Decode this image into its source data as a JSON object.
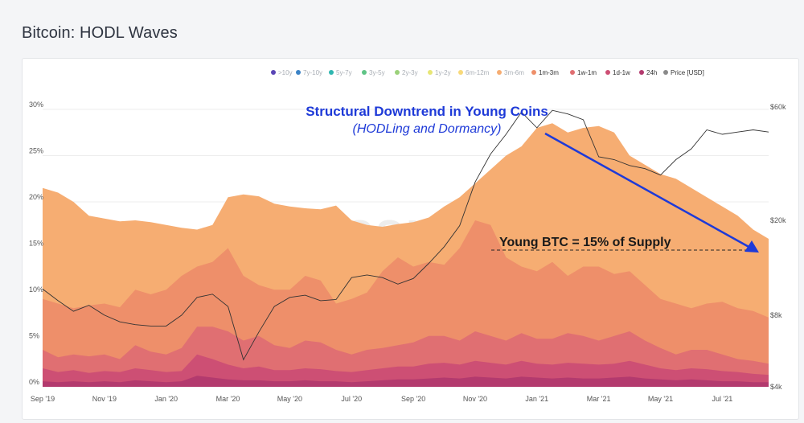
{
  "page": {
    "title": "Bitcoin: HODL Waves"
  },
  "watermark": "glassnode",
  "colors": {
    "band_3m6m": "#f6ad72",
    "band_1m3m": "#ee8f6a",
    "band_1w1m": "#e06f72",
    "band_1d1w": "#cd4f74",
    "band_24h": "#b33a6e",
    "price": "#333333",
    "annotation_blue": "#1e3ad8"
  },
  "legend": [
    {
      "label": ">10y",
      "color": "#5a45b5",
      "active": false
    },
    {
      "label": "7y-10y",
      "color": "#3b83c6",
      "active": false
    },
    {
      "label": "5y-7y",
      "color": "#2fb6b0",
      "active": false
    },
    {
      "label": "3y-5y",
      "color": "#5fc486",
      "active": false
    },
    {
      "label": "2y-3y",
      "color": "#9bd17a",
      "active": false
    },
    {
      "label": "1y-2y",
      "color": "#e7e676",
      "active": false
    },
    {
      "label": "6m-12m",
      "color": "#f8d97a",
      "active": false
    },
    {
      "label": "3m-6m",
      "color": "#f6ad72",
      "active": false
    },
    {
      "label": "1m-3m",
      "color": "#ee8f6a",
      "active": true
    },
    {
      "label": "1w-1m",
      "color": "#e06f72",
      "active": true
    },
    {
      "label": "1d-1w",
      "color": "#cd4f74",
      "active": true
    },
    {
      "label": "24h",
      "color": "#b33a6e",
      "active": true
    },
    {
      "label": "Price [USD]",
      "color": "#8a8a8a",
      "active": true
    }
  ],
  "annotations": {
    "headline": "Structural Downtrend in Young Coins",
    "subline": "(HODLing and Dormancy)",
    "level_label": "Young BTC = 15% of Supply"
  },
  "chart_data": {
    "type": "area",
    "stacked": true,
    "x_ticks": [
      "Sep '19",
      "Nov '19",
      "Jan '20",
      "Mar '20",
      "May '20",
      "Jul '20",
      "Sep '20",
      "Nov '20",
      "Jan '21",
      "Mar '21",
      "May '21",
      "Jul '21"
    ],
    "y_ticks": [
      "0%",
      "5%",
      "10%",
      "15%",
      "20%",
      "25%",
      "30%"
    ],
    "y2_ticks": [
      "$4k",
      "$8k",
      "$20k",
      "$60k"
    ],
    "ylim": [
      0,
      32
    ],
    "y2_scale": "log",
    "y2lim": [
      4000,
      70000
    ],
    "x_months": [
      0,
      0.5,
      1,
      1.5,
      2,
      2.5,
      3,
      3.5,
      4,
      4.5,
      5,
      5.5,
      6,
      6.5,
      7,
      7.5,
      8,
      8.5,
      9,
      9.5,
      10,
      10.5,
      11,
      11.5,
      12,
      12.5,
      13,
      13.5,
      14,
      14.5,
      15,
      15.5,
      16,
      16.5,
      17,
      17.5,
      18,
      18.5,
      19,
      19.5,
      20,
      20.5,
      21,
      21.5,
      22,
      22.5,
      23,
      23.5
    ],
    "series": [
      {
        "name": "3m-6m",
        "values": [
          21.5,
          21,
          20,
          18.5,
          18.2,
          17.9,
          18,
          17.8,
          17.5,
          17.2,
          17,
          17.5,
          20.5,
          20.8,
          20.6,
          19.8,
          19.5,
          19.3,
          19.2,
          19.6,
          18,
          17.5,
          17.3,
          17.6,
          17.8,
          18.3,
          19.5,
          20.5,
          22,
          23.5,
          25,
          26,
          28,
          28.5,
          27.5,
          28,
          28.2,
          27.5,
          25,
          24,
          23,
          22.5,
          21.5,
          20.5,
          19.5,
          18.5,
          17,
          16
        ]
      },
      {
        "name": "1m-3m",
        "values": [
          9.5,
          9,
          8.5,
          8.8,
          9,
          8.6,
          10.5,
          10,
          10.5,
          12,
          13,
          13.5,
          15,
          12,
          11,
          10.5,
          10.5,
          12,
          11.5,
          9,
          9.5,
          10.2,
          12.5,
          14,
          13,
          13.5,
          13.2,
          15,
          18,
          17.5,
          14,
          13,
          12.5,
          13.5,
          12,
          13,
          13,
          12.2,
          12.5,
          11,
          9.5,
          9,
          8.5,
          9,
          9.2,
          8.5,
          8.2,
          7.5
        ]
      },
      {
        "name": "1w-1m",
        "values": [
          4,
          3.2,
          3.5,
          3.3,
          3.5,
          3,
          4.5,
          3.8,
          3.5,
          4.2,
          6.5,
          6.5,
          6,
          5,
          5.5,
          4.5,
          4.2,
          5,
          4.8,
          4,
          3.5,
          4,
          4.2,
          4.5,
          4.8,
          5.5,
          5.5,
          5,
          6,
          5.5,
          5,
          5.8,
          5.2,
          5.2,
          5.8,
          5.5,
          5,
          5.5,
          6,
          5,
          4.2,
          3.5,
          4,
          4,
          3.5,
          3,
          2.8,
          2.5
        ]
      },
      {
        "name": "1d-1w",
        "values": [
          2,
          1.6,
          1.8,
          1.5,
          1.7,
          1.6,
          2,
          1.8,
          1.6,
          1.7,
          3.5,
          3,
          2.4,
          2,
          2.2,
          1.8,
          1.8,
          2,
          1.9,
          1.7,
          1.6,
          1.8,
          2,
          2.2,
          2.2,
          2.5,
          2.6,
          2.4,
          2.8,
          2.6,
          2.4,
          2.8,
          2.5,
          2.4,
          2.6,
          2.5,
          2.4,
          2.5,
          2.8,
          2.4,
          2,
          1.8,
          2,
          1.9,
          1.7,
          1.6,
          1.4,
          1.3
        ]
      },
      {
        "name": "24h",
        "values": [
          0.6,
          0.5,
          0.6,
          0.5,
          0.6,
          0.5,
          0.7,
          0.6,
          0.5,
          0.6,
          1.2,
          1,
          0.8,
          0.7,
          0.7,
          0.6,
          0.6,
          0.7,
          0.6,
          0.6,
          0.5,
          0.6,
          0.7,
          0.8,
          0.8,
          0.9,
          1,
          0.9,
          1.1,
          1,
          0.9,
          1.1,
          1,
          0.9,
          1,
          0.9,
          0.9,
          1,
          1.1,
          0.9,
          0.8,
          0.7,
          0.8,
          0.7,
          0.6,
          0.6,
          0.5,
          0.5
        ]
      },
      {
        "name": "Price [USD]",
        "axis": "right",
        "values": [
          10300,
          9200,
          8300,
          8800,
          8000,
          7500,
          7300,
          7200,
          7200,
          8000,
          9500,
          9800,
          8700,
          5200,
          6800,
          8700,
          9500,
          9700,
          9200,
          9300,
          11500,
          11800,
          11500,
          10800,
          11400,
          13200,
          15500,
          19000,
          29000,
          38000,
          46000,
          57000,
          49000,
          58000,
          56000,
          53000,
          37000,
          36000,
          34000,
          33000,
          31000,
          36000,
          40000,
          48000,
          46000,
          47000,
          48000,
          47000
        ]
      }
    ],
    "reference_line": {
      "y": 15
    }
  }
}
